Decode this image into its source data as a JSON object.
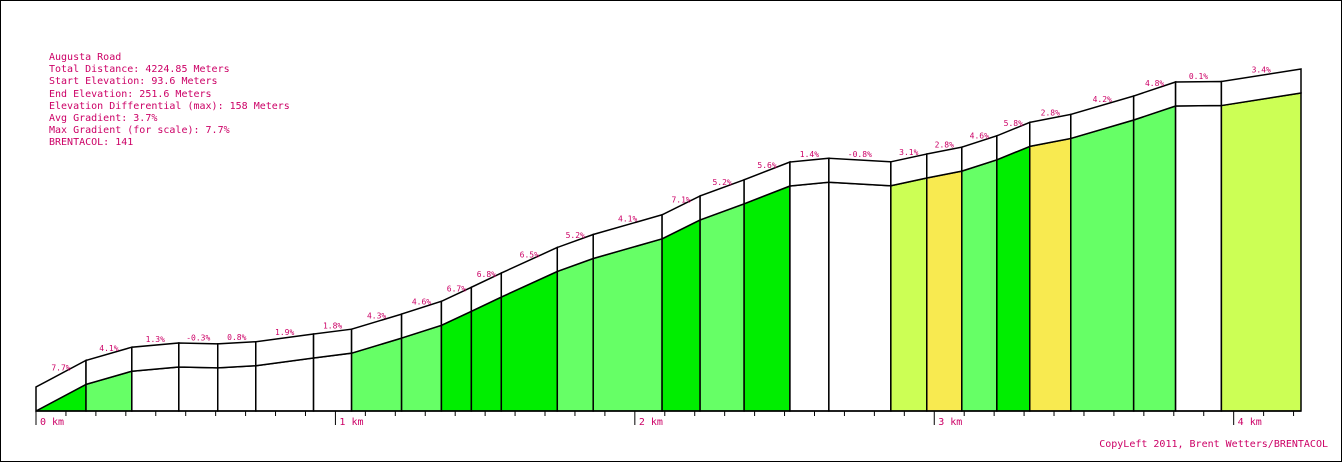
{
  "info": {
    "road": "Augusta Road",
    "total_distance": "Total Distance: 4224.85 Meters",
    "start_elevation": "Start Elevation: 93.6 Meters",
    "end_elevation": "End Elevation: 251.6 Meters",
    "elev_diff": "Elevation Differential (max): 158 Meters",
    "avg_gradient": "Avg Gradient: 3.7%",
    "max_gradient": "Max Gradient (for scale): 7.7%",
    "brentacol": "BRENTACOL: 141"
  },
  "credit": "CopyLeft 2011, Brent Wetters/BRENTACOL",
  "colors": {
    "border": "#000000",
    "label": "#cc0066",
    "steep": "#00ee00",
    "moderate": "#66ff66",
    "gentle": "#ccff55",
    "mild": "#f8ea50",
    "flat": "#ffffff"
  },
  "chart_data": {
    "type": "area",
    "xlabel": "",
    "ylabel": "",
    "x_unit": "km",
    "xlim": [
      0,
      4.22485
    ],
    "ylim": [
      93.6,
      251.6
    ],
    "x_ticks": [
      {
        "value": 0,
        "label": "0 km"
      },
      {
        "value": 1,
        "label": "1 km"
      },
      {
        "value": 2,
        "label": "2 km"
      },
      {
        "value": 3,
        "label": "3 km"
      },
      {
        "value": 4,
        "label": "4 km"
      }
    ],
    "segments": [
      {
        "gradient": "7.7%",
        "grade": 7.7,
        "distance_km": 0.167,
        "elev_end": 106.3,
        "color_class": "steep"
      },
      {
        "gradient": "4.1%",
        "grade": 4.1,
        "distance_km": 0.153,
        "elev_end": 112.6,
        "color_class": "moderate"
      },
      {
        "gradient": "1.3%",
        "grade": 1.3,
        "distance_km": 0.157,
        "elev_end": 114.6,
        "color_class": "flat"
      },
      {
        "gradient": "-0.3%",
        "grade": -0.3,
        "distance_km": 0.13,
        "elev_end": 114.2,
        "color_class": "flat"
      },
      {
        "gradient": "0.8%",
        "grade": 0.8,
        "distance_km": 0.127,
        "elev_end": 115.2,
        "color_class": "flat"
      },
      {
        "gradient": "1.9%",
        "grade": 1.9,
        "distance_km": 0.193,
        "elev_end": 118.9,
        "color_class": "flat"
      },
      {
        "gradient": "1.8%",
        "grade": 1.8,
        "distance_km": 0.127,
        "elev_end": 121.2,
        "color_class": "flat"
      },
      {
        "gradient": "4.3%",
        "grade": 4.3,
        "distance_km": 0.167,
        "elev_end": 128.4,
        "color_class": "moderate"
      },
      {
        "gradient": "4.6%",
        "grade": 4.6,
        "distance_km": 0.133,
        "elev_end": 134.5,
        "color_class": "moderate"
      },
      {
        "gradient": "6.7%",
        "grade": 6.7,
        "distance_km": 0.1,
        "elev_end": 141.2,
        "color_class": "steep"
      },
      {
        "gradient": "6.8%",
        "grade": 6.8,
        "distance_km": 0.1,
        "elev_end": 148.0,
        "color_class": "steep"
      },
      {
        "gradient": "6.5%",
        "grade": 6.5,
        "distance_km": 0.187,
        "elev_end": 160.2,
        "color_class": "steep"
      },
      {
        "gradient": "5.2%",
        "grade": 5.2,
        "distance_km": 0.12,
        "elev_end": 166.4,
        "color_class": "moderate"
      },
      {
        "gradient": "4.1%",
        "grade": 4.1,
        "distance_km": 0.23,
        "elev_end": 175.8,
        "color_class": "moderate"
      },
      {
        "gradient": "7.1%",
        "grade": 7.1,
        "distance_km": 0.127,
        "elev_end": 184.8,
        "color_class": "steep"
      },
      {
        "gradient": "5.2%",
        "grade": 5.2,
        "distance_km": 0.147,
        "elev_end": 192.5,
        "color_class": "moderate"
      },
      {
        "gradient": "5.6%",
        "grade": 5.6,
        "distance_km": 0.153,
        "elev_end": 201.0,
        "color_class": "steep"
      },
      {
        "gradient": "1.4%",
        "grade": 1.4,
        "distance_km": 0.13,
        "elev_end": 202.8,
        "color_class": "flat"
      },
      {
        "gradient": "-0.8%",
        "grade": -0.8,
        "distance_km": 0.207,
        "elev_end": 201.1,
        "color_class": "flat"
      },
      {
        "gradient": "3.1%",
        "grade": 3.1,
        "distance_km": 0.12,
        "elev_end": 204.8,
        "color_class": "gentle"
      },
      {
        "gradient": "2.8%",
        "grade": 2.8,
        "distance_km": 0.117,
        "elev_end": 208.1,
        "color_class": "mild"
      },
      {
        "gradient": "4.6%",
        "grade": 4.6,
        "distance_km": 0.117,
        "elev_end": 213.5,
        "color_class": "moderate"
      },
      {
        "gradient": "5.8%",
        "grade": 5.8,
        "distance_km": 0.11,
        "elev_end": 219.9,
        "color_class": "steep"
      },
      {
        "gradient": "2.8%",
        "grade": 2.8,
        "distance_km": 0.137,
        "elev_end": 223.7,
        "color_class": "mild"
      },
      {
        "gradient": "4.2%",
        "grade": 4.2,
        "distance_km": 0.21,
        "elev_end": 232.5,
        "color_class": "moderate"
      },
      {
        "gradient": "4.8%",
        "grade": 4.8,
        "distance_km": 0.14,
        "elev_end": 239.2,
        "color_class": "moderate"
      },
      {
        "gradient": "0.1%",
        "grade": 0.1,
        "distance_km": 0.153,
        "elev_end": 239.4,
        "color_class": "flat"
      },
      {
        "gradient": "3.4%",
        "grade": 3.4,
        "distance_km": 0.177,
        "elev_end": 245.4,
        "color_class": "gentle"
      }
    ]
  }
}
